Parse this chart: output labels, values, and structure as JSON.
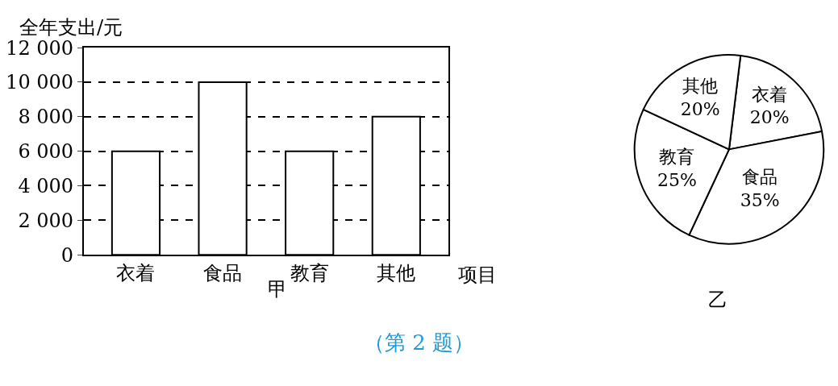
{
  "chart_data": [
    {
      "type": "bar",
      "ylabel": "全年支出/元",
      "xlabel": "项目",
      "annotations": [
        "甲",
        "（第 2 题）"
      ],
      "categories": [
        "衣着",
        "食品",
        "教育",
        "其他"
      ],
      "values": [
        6000,
        10000,
        6000,
        8000
      ],
      "color": "#ffffff",
      "ylim": [
        0,
        12000
      ],
      "yticks": [
        0,
        {
          "value": 2000,
          "label": "2 000"
        },
        {
          "value": 4000,
          "label": "4 000"
        },
        {
          "value": 6000,
          "label": "6 000"
        },
        {
          "value": 8000,
          "label": "8 000"
        },
        {
          "value": 10000,
          "label": "10 000"
        },
        {
          "value": 12000,
          "label": "12 000"
        }
      ],
      "grid": "y",
      "line_style": "dashed"
    },
    {
      "type": "pie",
      "annotations": [
        "乙"
      ],
      "categories": [
        "衣着",
        "食品",
        "教育",
        "其他"
      ],
      "values": [
        20,
        35,
        25,
        20
      ],
      "value_labels": [
        "20%",
        "35%",
        "25%",
        "20%"
      ],
      "colors": [
        "#ffffff",
        "#ffffff",
        "#ffffff",
        "#ffffff"
      ]
    }
  ]
}
